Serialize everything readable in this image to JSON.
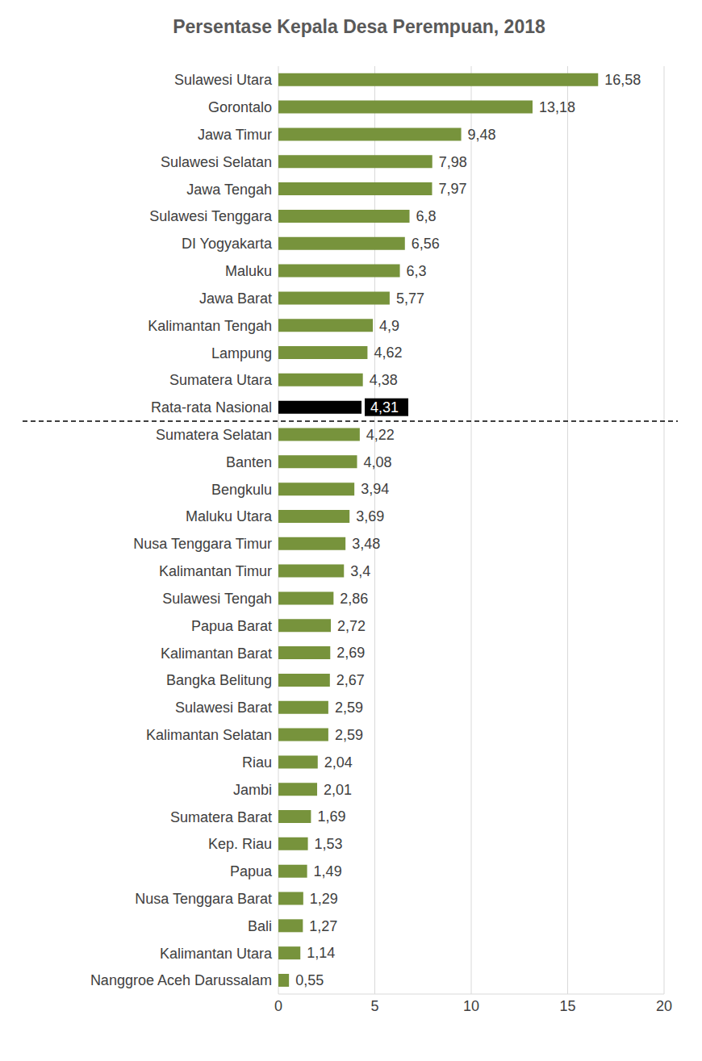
{
  "chart_data": {
    "type": "bar",
    "title": "Persentase Kepala Desa Perempuan, 2018",
    "orientation": "horizontal",
    "categories": [
      "Sulawesi Utara",
      "Gorontalo",
      "Jawa Timur",
      "Sulawesi Selatan",
      "Jawa Tengah",
      "Sulawesi Tenggara",
      "DI Yogyakarta",
      "Maluku",
      "Jawa Barat",
      "Kalimantan Tengah",
      "Lampung",
      "Sumatera Utara",
      "Rata-rata Nasional",
      "Sumatera Selatan",
      "Banten",
      "Bengkulu",
      "Maluku Utara",
      "Nusa Tenggara Timur",
      "Kalimantan Timur",
      "Sulawesi Tengah",
      "Papua Barat",
      "Kalimantan Barat",
      "Bangka Belitung",
      "Sulawesi Barat",
      "Kalimantan Selatan",
      "Riau",
      "Jambi",
      "Sumatera Barat",
      "Kep. Riau",
      "Papua",
      "Nusa Tenggara Barat",
      "Bali",
      "Kalimantan Utara",
      "Nanggroe Aceh Darussalam"
    ],
    "values": [
      16.58,
      13.18,
      9.48,
      7.98,
      7.97,
      6.8,
      6.56,
      6.3,
      5.77,
      4.9,
      4.62,
      4.38,
      4.31,
      4.22,
      4.08,
      3.94,
      3.69,
      3.48,
      3.4,
      2.86,
      2.72,
      2.69,
      2.67,
      2.59,
      2.59,
      2.04,
      2.01,
      1.69,
      1.53,
      1.49,
      1.29,
      1.27,
      1.14,
      0.55
    ],
    "value_labels": [
      "16,58",
      "13,18",
      "9,48",
      "7,98",
      "7,97",
      "6,8",
      "6,56",
      "6,3",
      "5,77",
      "4,9",
      "4,62",
      "4,38",
      "4,31",
      "4,22",
      "4,08",
      "3,94",
      "3,69",
      "3,48",
      "3,4",
      "2,86",
      "2,72",
      "2,69",
      "2,67",
      "2,59",
      "2,59",
      "2,04",
      "2,01",
      "1,69",
      "1,53",
      "1,49",
      "1,29",
      "1,27",
      "1,14",
      "0,55"
    ],
    "colors": [
      "#77933c",
      "#77933c",
      "#77933c",
      "#77933c",
      "#77933c",
      "#77933c",
      "#77933c",
      "#77933c",
      "#77933c",
      "#77933c",
      "#77933c",
      "#77933c",
      "#000000",
      "#77933c",
      "#77933c",
      "#77933c",
      "#77933c",
      "#77933c",
      "#77933c",
      "#77933c",
      "#77933c",
      "#77933c",
      "#77933c",
      "#77933c",
      "#77933c",
      "#77933c",
      "#77933c",
      "#77933c",
      "#77933c",
      "#77933c",
      "#77933c",
      "#77933c",
      "#77933c",
      "#77933c"
    ],
    "xlim": [
      0,
      20
    ],
    "xticks": [
      0,
      5,
      10,
      15,
      20
    ],
    "grid": true,
    "data_labels": true
  }
}
